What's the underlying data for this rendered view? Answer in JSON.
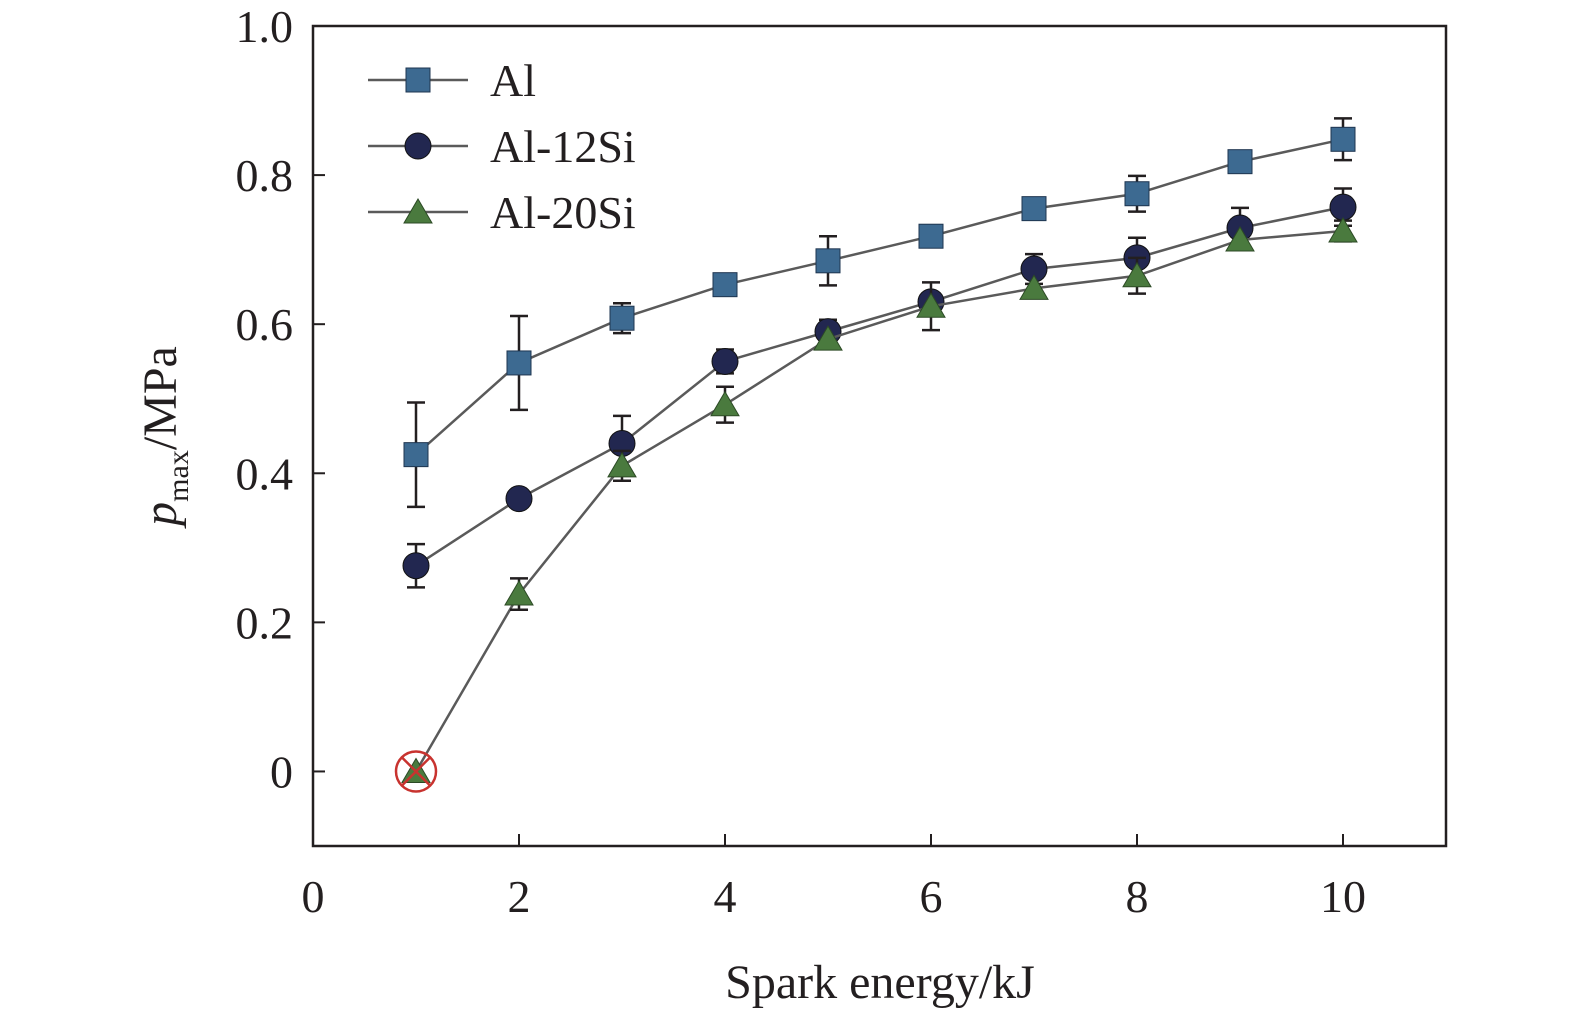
{
  "chart_data": {
    "type": "line",
    "title": "",
    "xlabel": "Spark energy/kJ",
    "ylabel": {
      "main": "p",
      "subscript": "max",
      "suffix": "/MPa"
    },
    "xlim": [
      0,
      11
    ],
    "ylim": [
      -0.1,
      1.0
    ],
    "xticks": [
      0,
      2,
      4,
      6,
      8,
      10
    ],
    "xtick_labels": [
      "0",
      "2",
      "4",
      "6",
      "8",
      "10"
    ],
    "yticks": [
      0,
      0.2,
      0.4,
      0.6,
      0.8,
      1.0
    ],
    "ytick_labels": [
      "0",
      "0.2",
      "0.4",
      "0.6",
      "0.8",
      "1.0"
    ],
    "grid": false,
    "legend_position": "top-left",
    "x": [
      1,
      2,
      3,
      4,
      5,
      6,
      7,
      8,
      9,
      10
    ],
    "series": [
      {
        "name": "Al",
        "marker": "square",
        "color": "#3d6a91",
        "values": [
          0.425,
          0.548,
          0.608,
          0.653,
          0.685,
          0.718,
          0.755,
          0.775,
          0.818,
          0.848
        ],
        "error": [
          0.07,
          0.063,
          0.02,
          0.0,
          0.033,
          0.0,
          0.0,
          0.024,
          0.0,
          0.028
        ]
      },
      {
        "name": "Al-12Si",
        "marker": "circle",
        "color": "#222750",
        "values": [
          0.276,
          0.366,
          0.44,
          0.55,
          0.59,
          0.63,
          0.674,
          0.689,
          0.729,
          0.757
        ],
        "error": [
          0.029,
          0.0,
          0.037,
          0.016,
          0.016,
          0.0,
          0.02,
          0.027,
          0.027,
          0.025
        ]
      },
      {
        "name": "Al-20Si",
        "marker": "triangle",
        "color": "#4a7a3e",
        "values": [
          0.0,
          0.238,
          0.41,
          0.492,
          0.58,
          0.624,
          0.648,
          0.665,
          0.713,
          0.725
        ],
        "error": [
          0.0,
          0.021,
          0.02,
          0.024,
          0.0,
          0.032,
          0.0,
          0.024,
          0.0,
          0.014
        ]
      }
    ],
    "annotations": [
      {
        "type": "no-ignition-mark",
        "x": 1,
        "y": 0,
        "color": "#c8332f"
      }
    ]
  }
}
